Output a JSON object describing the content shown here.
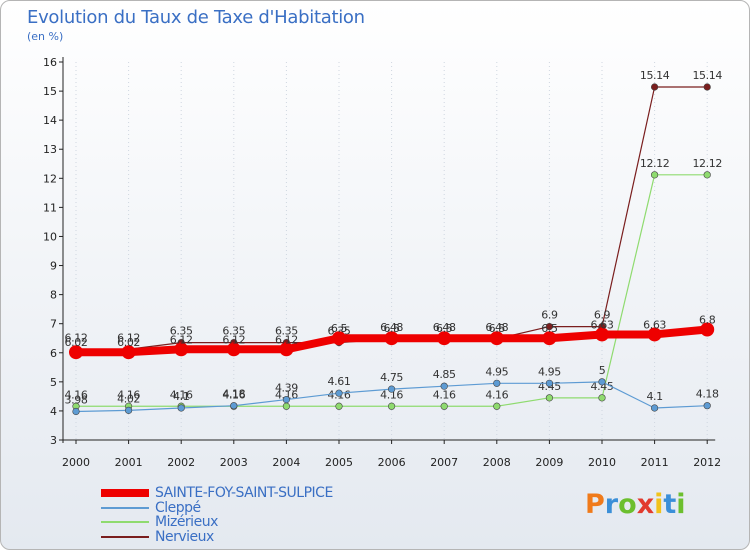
{
  "title": "Evolution du Taux de Taxe d'Habitation",
  "unit_label": "(en %)",
  "logo": {
    "letters": [
      "P",
      "r",
      "o",
      "x",
      "i",
      "t",
      "i"
    ],
    "colors": [
      "#f07a1a",
      "#3b8fd8",
      "#6cbf2e",
      "#e23a2e",
      "#f1c21b",
      "#3b8fd8",
      "#6cbf2e"
    ]
  },
  "chart_data": {
    "type": "line",
    "title": "Evolution du Taux de Taxe d'Habitation",
    "ylabel": "(en %)",
    "x": [
      "2000",
      "2001",
      "2002",
      "2003",
      "2004",
      "2005",
      "2006",
      "2007",
      "2008",
      "2009",
      "2010",
      "2011",
      "2012"
    ],
    "yticks": [
      "3",
      "4",
      "5",
      "6",
      "7",
      "8",
      "9",
      "10",
      "11",
      "12",
      "13",
      "14",
      "15",
      "16"
    ],
    "ylim": [
      3,
      16
    ],
    "series": [
      {
        "name": "Nervieux",
        "color": "#7a1e1e",
        "width": 1.2,
        "values": [
          6.12,
          6.12,
          6.35,
          6.35,
          6.35,
          6.35,
          6.48,
          6.48,
          6.48,
          6.9,
          6.9,
          15.14,
          15.14
        ],
        "labels": [
          "6.12",
          "6.12",
          "6.35",
          "6.35",
          "6.35",
          "6.35",
          "6.48",
          "6.48",
          "6.48",
          "6.9",
          "6.9",
          "15.14",
          "15.14"
        ]
      },
      {
        "name": "Mizérieux",
        "color": "#8fdb6f",
        "width": 1.2,
        "values": [
          4.16,
          4.16,
          4.16,
          4.16,
          4.16,
          4.16,
          4.16,
          4.16,
          4.16,
          4.45,
          4.45,
          12.12,
          12.12
        ],
        "labels": [
          "4.16",
          "4.16",
          "4.16",
          "4.16",
          "4.16",
          "4.16",
          "4.16",
          "4.16",
          "4.16",
          "4.45",
          "4.45",
          "12.12",
          "12.12"
        ]
      },
      {
        "name": "Cleppé",
        "color": "#5d9bd3",
        "width": 1.2,
        "values": [
          3.98,
          4.02,
          4.1,
          4.18,
          4.39,
          4.61,
          4.75,
          4.85,
          4.95,
          4.95,
          5,
          4.1,
          4.18
        ],
        "labels": [
          "3.98",
          "4.02",
          "4.1",
          "4.18",
          "4.39",
          "4.61",
          "4.75",
          "4.85",
          "4.95",
          "4.95",
          "5",
          "4.1",
          "4.18"
        ]
      },
      {
        "name": "SAINTE-FOY-SAINT-SULPICE",
        "color": "#ee0000",
        "width": 8,
        "values": [
          6.02,
          6.02,
          6.12,
          6.12,
          6.12,
          6.5,
          6.5,
          6.5,
          6.5,
          6.5,
          6.63,
          6.63,
          6.8
        ],
        "labels": [
          "6.02",
          "6.02",
          "6.12",
          "6.12",
          "6.12",
          "6.5",
          "6.5",
          "6.5",
          "6.5",
          "6.5",
          "6.63",
          "6.63",
          "6.8"
        ]
      }
    ],
    "legend": [
      {
        "name": "SAINTE-FOY-SAINT-SULPICE",
        "color": "#ee0000",
        "thickness": 8
      },
      {
        "name": "Cleppé",
        "color": "#5d9bd3",
        "thickness": 2
      },
      {
        "name": "Mizérieux",
        "color": "#8fdb6f",
        "thickness": 2
      },
      {
        "name": "Nervieux",
        "color": "#7a1e1e",
        "thickness": 2
      }
    ]
  }
}
